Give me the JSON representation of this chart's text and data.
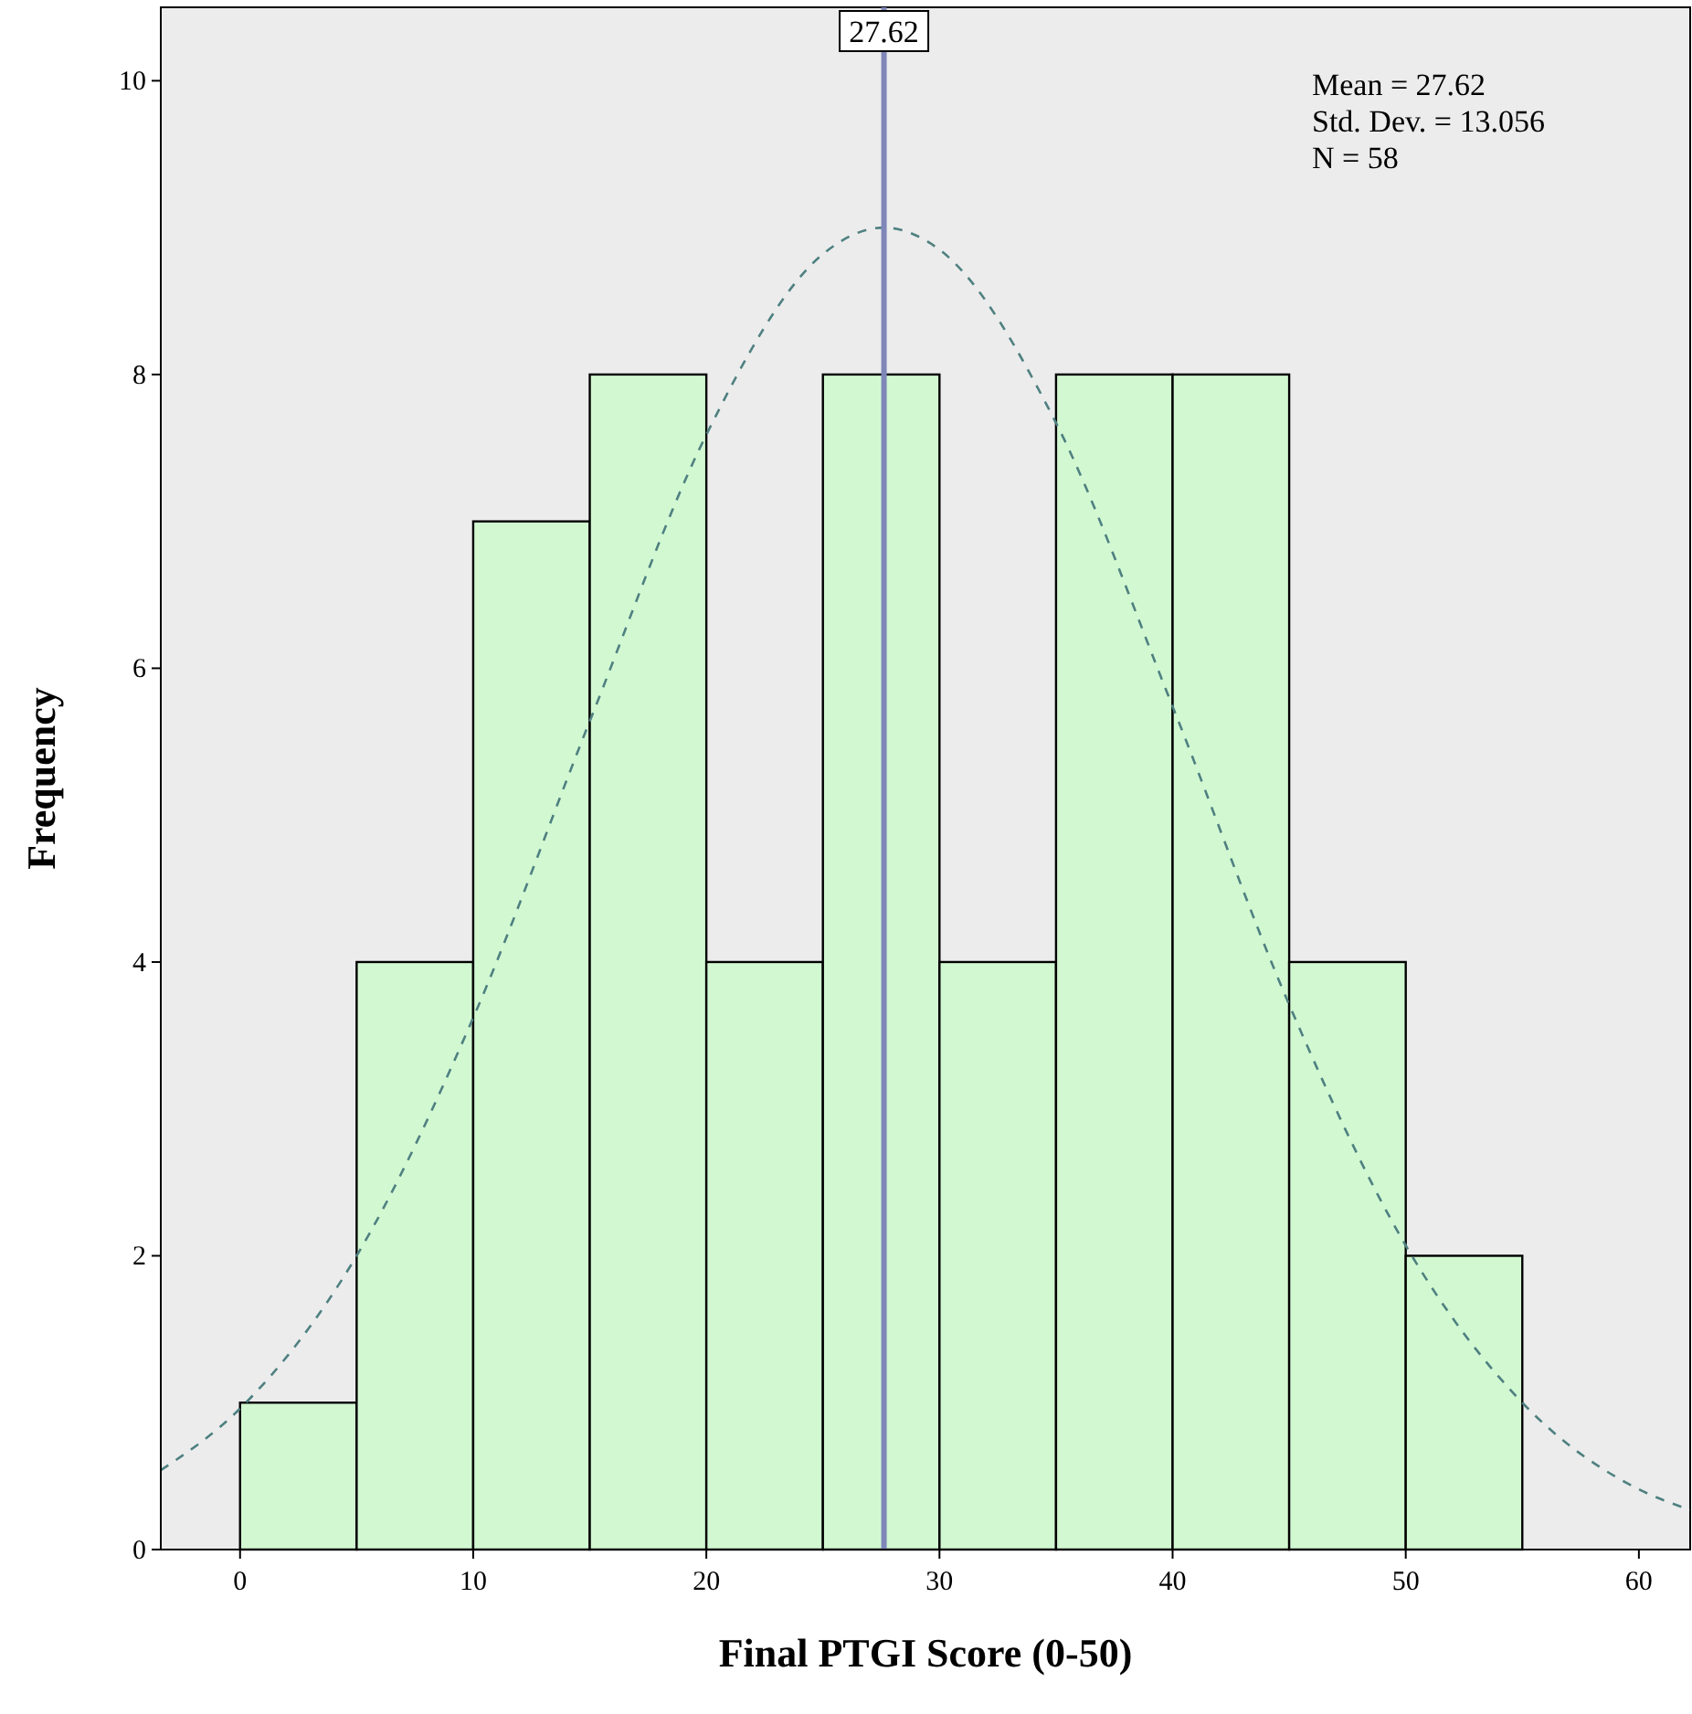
{
  "chart_data": {
    "type": "histogram",
    "xlabel": "Final PTGI Score (0-50)",
    "ylabel": "Frequency",
    "bins": [
      0,
      5,
      10,
      15,
      20,
      25,
      30,
      35,
      40,
      45,
      50,
      55
    ],
    "series": [
      {
        "color": "#d2f8d2",
        "values": [
          1,
          4,
          7,
          8,
          4,
          8,
          4,
          8,
          8,
          4,
          2
        ]
      },
      {
        "type": "line",
        "color": "#4f8080",
        "line_style": "dashed",
        "marker": "none",
        "x": [
          -3.4,
          0,
          5,
          10,
          15,
          20,
          25,
          27.62,
          30,
          35,
          40,
          45,
          50,
          55,
          60,
          62.2
        ],
        "values": [
          0.54,
          0.96,
          2.0,
          3.62,
          5.64,
          7.59,
          8.82,
          9.0,
          8.85,
          7.67,
          5.74,
          3.71,
          2.07,
          1.0,
          0.41,
          0.27
        ]
      }
    ],
    "ref_lines": [
      {
        "axis": "x",
        "value": 27.62,
        "label": "27.62",
        "color": "#7f86b8"
      }
    ],
    "annotations": [
      "Mean = 27.62",
      "Std. Dev. = 13.056",
      "N = 58"
    ],
    "xlim": [
      -3.4,
      62.2
    ],
    "ylim": [
      0,
      10.5
    ],
    "xticks": [
      0,
      10,
      20,
      30,
      40,
      50,
      60
    ],
    "yticks": [
      0,
      2,
      4,
      6,
      8,
      10
    ],
    "grid": false
  }
}
